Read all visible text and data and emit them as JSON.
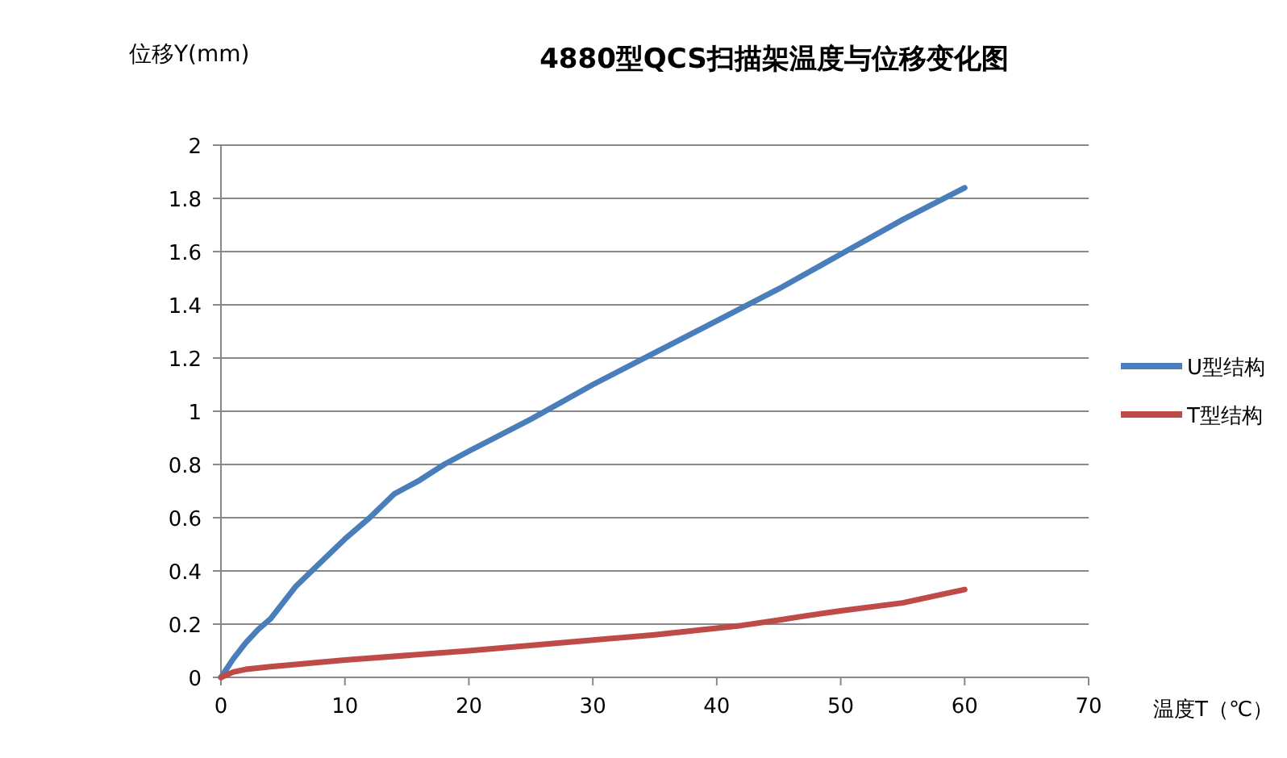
{
  "chart_data": {
    "type": "line",
    "title": "4880型QCS扫描架温度与位移变化图",
    "xlabel": "温度T（℃）",
    "ylabel": "位移Y(mm)",
    "xlim": [
      0,
      70
    ],
    "xticks": [
      0,
      10,
      20,
      30,
      40,
      50,
      60,
      70
    ],
    "ylim": [
      0,
      2
    ],
    "yticks": [
      0,
      0.2,
      0.4,
      0.6,
      0.8,
      1,
      1.2,
      1.4,
      1.6,
      1.8,
      2
    ],
    "grid": "y",
    "legend": "right",
    "marker": "none",
    "line_style": "solid",
    "x": [
      0,
      1,
      2,
      3,
      4,
      5,
      6,
      8,
      10,
      12,
      14,
      16,
      18,
      20,
      25,
      30,
      35,
      40,
      45,
      50,
      55,
      60
    ],
    "series": [
      {
        "name": "U型结构",
        "color": "#4a7ebb",
        "values": [
          0,
          0.07,
          0.13,
          0.18,
          0.22,
          0.28,
          0.34,
          0.43,
          0.52,
          0.6,
          0.69,
          0.74,
          0.8,
          0.85,
          0.97,
          1.1,
          1.22,
          1.34,
          1.46,
          1.59,
          1.72,
          1.84
        ]
      },
      {
        "name": "T型结构",
        "color": "#be4b48",
        "x": [
          0,
          1,
          2,
          4,
          10,
          20,
          30,
          35,
          40,
          42,
          45,
          47,
          50,
          55,
          58,
          60
        ],
        "values": [
          0,
          0.02,
          0.03,
          0.04,
          0.065,
          0.1,
          0.14,
          0.16,
          0.185,
          0.195,
          0.215,
          0.23,
          0.25,
          0.28,
          0.31,
          0.33
        ]
      }
    ]
  }
}
